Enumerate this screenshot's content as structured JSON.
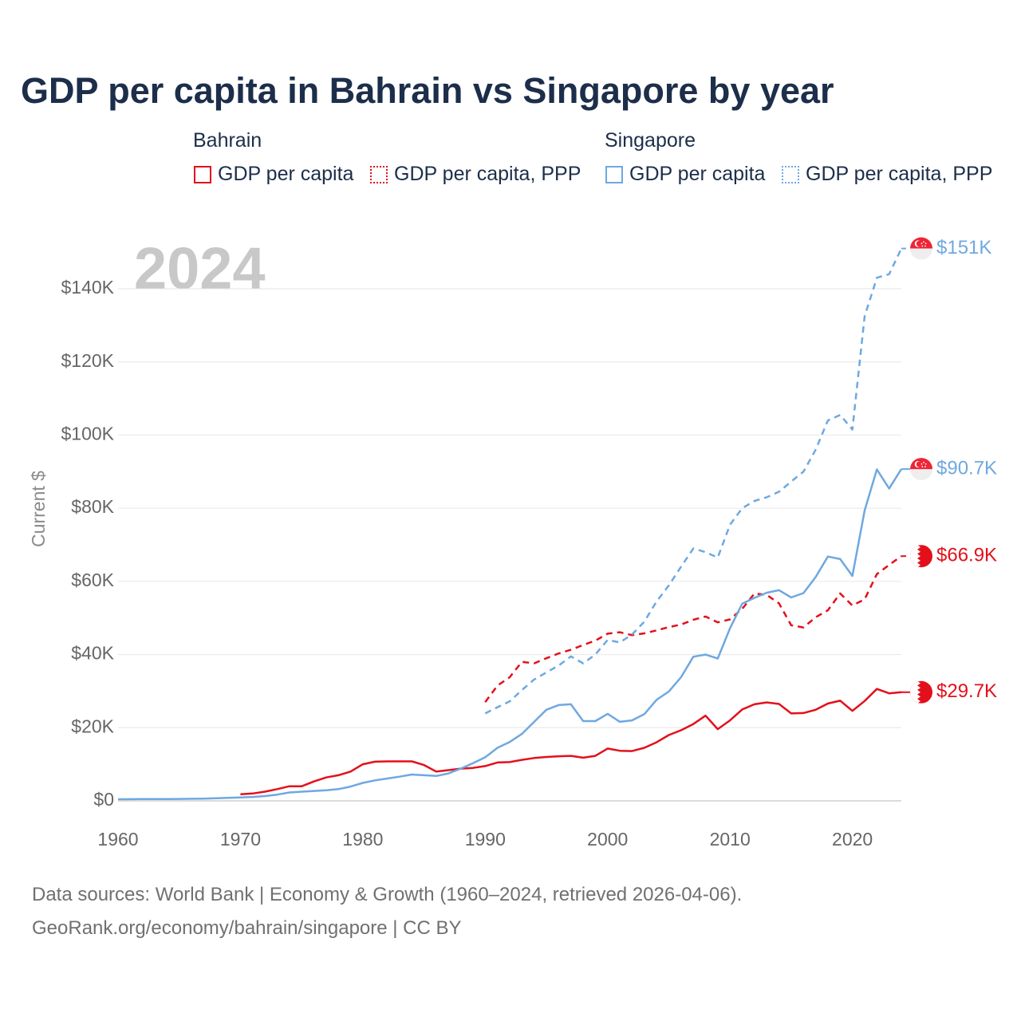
{
  "title": "GDP per capita in Bahrain vs Singapore by year",
  "legend": {
    "bahrain": {
      "group": "Bahrain",
      "items": [
        "GDP per capita",
        "GDP per capita, PPP"
      ]
    },
    "singapore": {
      "group": "Singapore",
      "items": [
        "GDP per capita",
        "GDP per capita, PPP"
      ]
    }
  },
  "year_watermark": "2024",
  "end_labels": {
    "sg_ppp": "$151K",
    "sg_gdp": "$90.7K",
    "bh_ppp": "$66.9K",
    "bh_gdp": "$29.7K"
  },
  "footer": {
    "line1": "Data sources: World Bank | Economy & Growth (1960–2024, retrieved 2026-04-06).",
    "line2": "GeoRank.org/economy/bahrain/singapore | CC BY"
  },
  "colors": {
    "bahrain": "#e3101b",
    "singapore": "#6fa8e0",
    "grid": "#e6e6e6",
    "axis_text": "#666666",
    "title": "#1c2e4a",
    "watermark": "#c8c8c8"
  },
  "chart_data": {
    "type": "line",
    "title": "GDP per capita in Bahrain vs Singapore by year",
    "xlabel": "",
    "ylabel": "Current $",
    "xlim": [
      1960,
      2024
    ],
    "ylim": [
      0,
      150000
    ],
    "x_ticks": [
      1960,
      1970,
      1980,
      1990,
      2000,
      2010,
      2020
    ],
    "y_ticks": [
      0,
      20000,
      40000,
      60000,
      80000,
      100000,
      120000,
      140000
    ],
    "y_tick_labels": [
      "$0",
      "$20K",
      "$40K",
      "$60K",
      "$80K",
      "$100K",
      "$120K",
      "$140K"
    ],
    "series": [
      {
        "name": "Bahrain GDP per capita",
        "country": "Bahrain",
        "style": "solid",
        "x": [
          1970,
          1971,
          1972,
          1973,
          1974,
          1975,
          1976,
          1977,
          1978,
          1979,
          1980,
          1981,
          1982,
          1983,
          1984,
          1985,
          1986,
          1987,
          1988,
          1989,
          1990,
          1991,
          1992,
          1993,
          1994,
          1995,
          1996,
          1997,
          1998,
          1999,
          2000,
          2001,
          2002,
          2003,
          2004,
          2005,
          2006,
          2007,
          2008,
          2009,
          2010,
          2011,
          2012,
          2013,
          2014,
          2015,
          2016,
          2017,
          2018,
          2019,
          2020,
          2021,
          2022,
          2023,
          2024
        ],
        "values": [
          1800,
          2000,
          2500,
          3200,
          4000,
          4000,
          5300,
          6400,
          7000,
          8000,
          10000,
          10700,
          10800,
          10800,
          10800,
          9800,
          8000,
          8400,
          8800,
          9000,
          9500,
          10500,
          10600,
          11200,
          11700,
          12000,
          12200,
          12300,
          11800,
          12300,
          14300,
          13700,
          13600,
          14500,
          16000,
          18000,
          19300,
          21000,
          23300,
          19600,
          22000,
          25000,
          26400,
          26900,
          26500,
          23900,
          24000,
          24900,
          26600,
          27400,
          24600,
          27300,
          30600,
          29400,
          29700
        ]
      },
      {
        "name": "Bahrain GDP per capita, PPP",
        "country": "Bahrain",
        "style": "dashed",
        "x": [
          1990,
          1991,
          1992,
          1993,
          1994,
          1995,
          1996,
          1997,
          1998,
          1999,
          2000,
          2001,
          2002,
          2003,
          2004,
          2005,
          2006,
          2007,
          2008,
          2009,
          2010,
          2011,
          2012,
          2013,
          2014,
          2015,
          2016,
          2017,
          2018,
          2019,
          2020,
          2021,
          2022,
          2023,
          2024
        ],
        "values": [
          27000,
          31500,
          33800,
          38000,
          37600,
          39000,
          40300,
          41300,
          42600,
          43800,
          45700,
          46100,
          45300,
          45800,
          46600,
          47500,
          48200,
          49500,
          50400,
          48800,
          49600,
          52500,
          56700,
          56300,
          54000,
          48000,
          47400,
          50200,
          52100,
          56700,
          53400,
          55100,
          62000,
          64500,
          66900
        ]
      },
      {
        "name": "Singapore GDP per capita",
        "country": "Singapore",
        "style": "solid",
        "x": [
          1960,
          1961,
          1962,
          1963,
          1964,
          1965,
          1966,
          1967,
          1968,
          1969,
          1970,
          1971,
          1972,
          1973,
          1974,
          1975,
          1976,
          1977,
          1978,
          1979,
          1980,
          1981,
          1982,
          1983,
          1984,
          1985,
          1986,
          1987,
          1988,
          1989,
          1990,
          1991,
          1992,
          1993,
          1994,
          1995,
          1996,
          1997,
          1998,
          1999,
          2000,
          2001,
          2002,
          2003,
          2004,
          2005,
          2006,
          2007,
          2008,
          2009,
          2010,
          2011,
          2012,
          2013,
          2014,
          2015,
          2016,
          2017,
          2018,
          2019,
          2020,
          2021,
          2022,
          2023,
          2024
        ],
        "values": [
          430,
          450,
          470,
          500,
          490,
          520,
          560,
          620,
          710,
          820,
          930,
          1070,
          1300,
          1700,
          2300,
          2500,
          2700,
          2900,
          3200,
          3900,
          4900,
          5600,
          6100,
          6600,
          7200,
          7000,
          6800,
          7500,
          8800,
          10300,
          11900,
          14500,
          16100,
          18300,
          21600,
          24900,
          26200,
          26400,
          21800,
          21800,
          23800,
          21600,
          22000,
          23700,
          27600,
          29900,
          33800,
          39400,
          40000,
          38900,
          47200,
          53900,
          55500,
          56900,
          57600,
          55600,
          56800,
          61200,
          66800,
          66100,
          61500,
          79400,
          90600,
          85400,
          90700
        ]
      },
      {
        "name": "Singapore GDP per capita, PPP",
        "country": "Singapore",
        "style": "dashed",
        "x": [
          1990,
          1991,
          1992,
          1993,
          1994,
          1995,
          1996,
          1997,
          1998,
          1999,
          2000,
          2001,
          2002,
          2003,
          2004,
          2005,
          2006,
          2007,
          2008,
          2009,
          2010,
          2011,
          2012,
          2013,
          2014,
          2015,
          2016,
          2017,
          2018,
          2019,
          2020,
          2021,
          2022,
          2023,
          2024
        ],
        "values": [
          23900,
          25600,
          27200,
          30300,
          33200,
          35100,
          37000,
          39500,
          37600,
          40000,
          44000,
          43300,
          45500,
          49000,
          54500,
          58900,
          64000,
          69000,
          68000,
          66500,
          75500,
          80000,
          82000,
          83000,
          84500,
          87300,
          90000,
          96000,
          104000,
          105500,
          101500,
          132500,
          143000,
          144000,
          151000
        ]
      }
    ]
  }
}
